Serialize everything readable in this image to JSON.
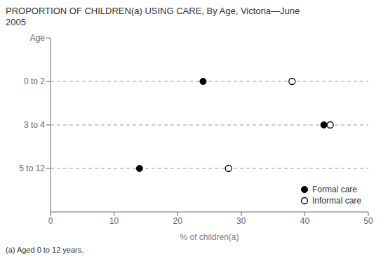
{
  "chart_data": {
    "type": "scatter",
    "orientation": "horizontal",
    "title": "PROPORTION OF CHILDREN(a) USING CARE, By Age, Victoria—June\n2005",
    "xlabel": "% of children(a)",
    "ylabel": "Age",
    "annotations": [
      "(a) Aged 0 to 12 years."
    ],
    "categories": [
      "0 to 2",
      "3 to 4",
      "5 to 12"
    ],
    "series": [
      {
        "name": "Formal care",
        "color": "#000000",
        "marker": "circle",
        "values": [
          24,
          43,
          14
        ]
      },
      {
        "name": "Informal care",
        "color": "#000000",
        "marker": "open_circle",
        "values": [
          38,
          44,
          28
        ]
      }
    ],
    "xlim": [
      0,
      50
    ],
    "xticks": [
      0,
      10,
      20,
      30,
      40,
      50
    ],
    "grid": true,
    "legend": "lower right"
  }
}
